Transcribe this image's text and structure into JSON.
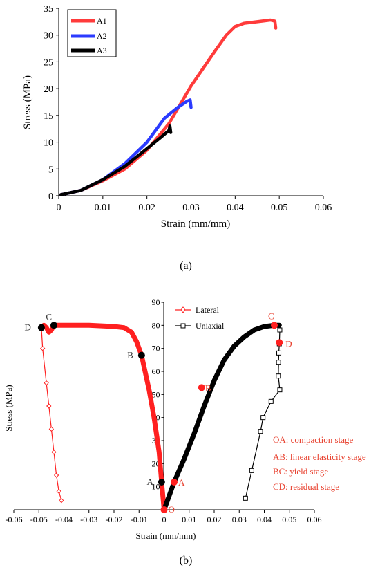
{
  "chart_data": [
    {
      "type": "line",
      "caption": "(a)",
      "xlabel": "Strain  (mm/mm)",
      "ylabel": "Stress  (MPa)",
      "xlim": [
        0,
        0.06
      ],
      "ylim": [
        0,
        35
      ],
      "xticks": [
        "0",
        "0.01",
        "0.02",
        "0.03",
        "0.04",
        "0.05",
        "0.06"
      ],
      "yticks": [
        "0",
        "5",
        "10",
        "15",
        "20",
        "25",
        "30",
        "35"
      ],
      "grid": false,
      "legend_position": "top-left",
      "series": [
        {
          "name": "A1",
          "color": "#ff3b3b",
          "points": [
            [
              0.0005,
              0.2
            ],
            [
              0.005,
              1.0
            ],
            [
              0.01,
              2.8
            ],
            [
              0.015,
              5.0
            ],
            [
              0.02,
              8.5
            ],
            [
              0.025,
              13.5
            ],
            [
              0.03,
              20.5
            ],
            [
              0.035,
              26.5
            ],
            [
              0.038,
              30.0
            ],
            [
              0.04,
              31.6
            ],
            [
              0.042,
              32.2
            ],
            [
              0.045,
              32.5
            ],
            [
              0.048,
              32.8
            ],
            [
              0.049,
              32.6
            ],
            [
              0.0492,
              31.3
            ]
          ]
        },
        {
          "name": "A2",
          "color": "#2b3bff",
          "points": [
            [
              0.0005,
              0.2
            ],
            [
              0.005,
              1.0
            ],
            [
              0.01,
              3.0
            ],
            [
              0.015,
              6.0
            ],
            [
              0.02,
              10.0
            ],
            [
              0.024,
              14.5
            ],
            [
              0.027,
              16.5
            ],
            [
              0.029,
              17.6
            ],
            [
              0.0298,
              17.9
            ],
            [
              0.03,
              16.5
            ]
          ]
        },
        {
          "name": "A3",
          "color": "#000000",
          "points": [
            [
              0.0005,
              0.2
            ],
            [
              0.005,
              1.0
            ],
            [
              0.01,
              3.0
            ],
            [
              0.015,
              5.5
            ],
            [
              0.02,
              8.8
            ],
            [
              0.023,
              10.8
            ],
            [
              0.025,
              12.2
            ],
            [
              0.0252,
              13.0
            ],
            [
              0.0254,
              11.8
            ]
          ]
        }
      ]
    },
    {
      "type": "line",
      "caption": "(b)",
      "xlabel": "Strain (mm/mm)",
      "ylabel": "Stress (MPa)",
      "xlim": [
        -0.06,
        0.06
      ],
      "ylim": [
        0,
        90
      ],
      "xticks": [
        "-0.06",
        "-0.05",
        "-0.04",
        "-0.03",
        "-0.02",
        "-0.01",
        "0",
        "0.01",
        "0.02",
        "0.03",
        "0.04",
        "0.05",
        "0.06"
      ],
      "yticks": [
        "10",
        "20",
        "30",
        "40",
        "50",
        "60",
        "70",
        "80",
        "90"
      ],
      "grid": false,
      "legend_position": "top-right",
      "series": [
        {
          "name": "Lateral",
          "color": "#ff2020",
          "marker": "diamond",
          "points": [
            [
              0,
              0
            ],
            [
              -0.001,
              12
            ],
            [
              -0.002,
              25
            ],
            [
              -0.004,
              40
            ],
            [
              -0.006,
              52
            ],
            [
              -0.008,
              62
            ],
            [
              -0.009,
              67
            ],
            [
              -0.011,
              73
            ],
            [
              -0.013,
              77
            ],
            [
              -0.016,
              79
            ],
            [
              -0.02,
              79.5
            ],
            [
              -0.03,
              80
            ],
            [
              -0.04,
              80
            ],
            [
              -0.044,
              80
            ],
            [
              -0.045,
              78
            ],
            [
              -0.046,
              77
            ],
            [
              -0.047,
              79
            ],
            [
              -0.048,
              80
            ],
            [
              -0.049,
              79
            ],
            [
              -0.0485,
              70
            ],
            [
              -0.047,
              55
            ],
            [
              -0.046,
              45
            ],
            [
              -0.045,
              35
            ],
            [
              -0.044,
              25
            ],
            [
              -0.043,
              15
            ],
            [
              -0.042,
              8
            ],
            [
              -0.041,
              4
            ]
          ]
        },
        {
          "name": "Uniaxial",
          "color": "#000000",
          "marker": "square",
          "points": [
            [
              0,
              0
            ],
            [
              0.002,
              6
            ],
            [
              0.004,
              12
            ],
            [
              0.008,
              22
            ],
            [
              0.012,
              33
            ],
            [
              0.016,
              45
            ],
            [
              0.02,
              56
            ],
            [
              0.024,
              65
            ],
            [
              0.028,
              71
            ],
            [
              0.032,
              75
            ],
            [
              0.036,
              78
            ],
            [
              0.04,
              79.5
            ],
            [
              0.044,
              80
            ],
            [
              0.046,
              80
            ],
            [
              0.0462,
              78
            ],
            [
              0.046,
              72
            ],
            [
              0.0458,
              68
            ],
            [
              0.0457,
              64
            ],
            [
              0.0456,
              58
            ],
            [
              0.0462,
              52
            ],
            [
              0.0427,
              47
            ],
            [
              0.0395,
              40
            ],
            [
              0.0385,
              34
            ],
            [
              0.035,
              17
            ],
            [
              0.0325,
              5
            ]
          ]
        }
      ],
      "annotations": {
        "lateral_points": [
          {
            "label": "O",
            "x": 0.0,
            "y": 0
          },
          {
            "label": "A",
            "x": -0.001,
            "y": 12
          },
          {
            "label": "B",
            "x": -0.009,
            "y": 67
          },
          {
            "label": "C",
            "x": -0.044,
            "y": 80
          },
          {
            "label": "D",
            "x": -0.049,
            "y": 79
          }
        ],
        "uniaxial_points": [
          {
            "label": "A",
            "x": 0.004,
            "y": 12
          },
          {
            "label": "B",
            "x": 0.015,
            "y": 53
          },
          {
            "label": "C",
            "x": 0.044,
            "y": 80
          },
          {
            "label": "D",
            "x": 0.046,
            "y": 72.5
          }
        ],
        "stages": [
          "OA: compaction stage",
          "AB: linear elasticity stage",
          "BC: yield stage",
          "CD: residual stage"
        ]
      }
    }
  ]
}
